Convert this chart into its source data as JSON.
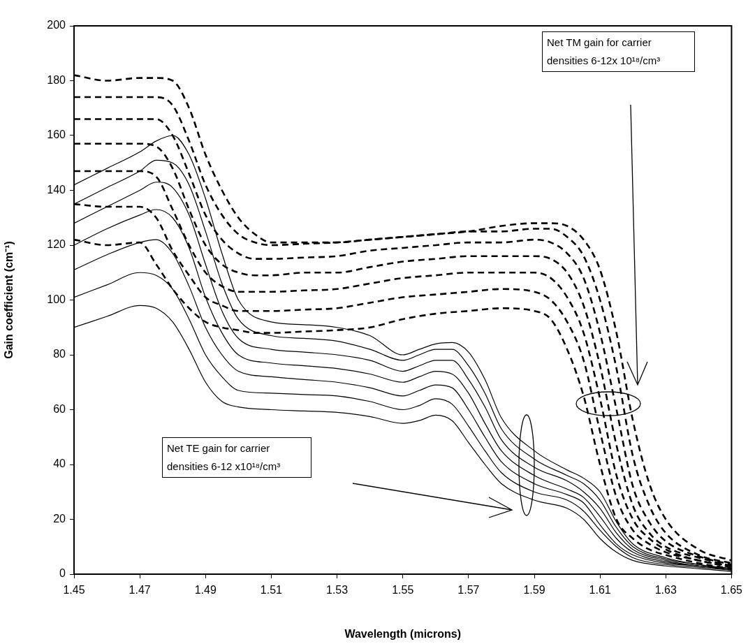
{
  "chart_data": {
    "type": "line",
    "xlabel": "Wavelength (microns)",
    "ylabel": "Gain coefficient (cm⁻¹)",
    "x": [
      1.45,
      1.46,
      1.47,
      1.475,
      1.48,
      1.485,
      1.49,
      1.495,
      1.5,
      1.51,
      1.52,
      1.53,
      1.54,
      1.55,
      1.555,
      1.56,
      1.565,
      1.57,
      1.575,
      1.58,
      1.59,
      1.6,
      1.605,
      1.61,
      1.615,
      1.62,
      1.63,
      1.64,
      1.65
    ],
    "series": [
      {
        "color": "#000000",
        "line_style": "solid",
        "values": [
          90,
          94,
          98,
          97,
          92,
          82,
          70,
          63,
          61,
          60,
          59.5,
          59,
          57.5,
          55,
          56,
          58,
          56,
          48,
          40,
          33,
          27,
          24,
          20,
          13,
          8,
          5,
          3,
          2,
          1
        ]
      },
      {
        "color": "#000000",
        "line_style": "solid",
        "values": [
          101,
          105.5,
          110,
          109,
          104,
          93,
          80,
          72,
          67,
          66,
          65.5,
          65,
          63,
          60,
          61.5,
          64,
          62,
          54,
          45,
          37,
          30,
          27,
          23,
          16,
          10,
          6,
          3.5,
          2.5,
          1.5
        ]
      },
      {
        "color": "#000000",
        "line_style": "solid",
        "values": [
          111,
          116.5,
          121,
          122,
          117,
          105,
          90,
          80,
          74,
          72,
          71,
          70,
          68,
          65,
          67,
          69,
          68,
          60,
          50,
          41,
          33,
          29,
          26,
          18,
          11,
          7,
          4,
          3,
          1.5
        ]
      },
      {
        "color": "#000000",
        "line_style": "solid",
        "values": [
          120,
          126,
          131,
          133,
          130,
          119,
          101,
          88,
          80,
          77,
          76,
          75,
          73,
          70,
          72,
          74,
          73,
          66,
          55,
          45,
          36,
          31,
          28,
          21,
          13,
          8,
          4.5,
          3,
          2
        ]
      },
      {
        "color": "#000000",
        "line_style": "solid",
        "values": [
          128,
          134,
          140,
          143,
          141,
          131,
          113,
          96,
          86,
          82,
          81,
          80,
          78,
          74,
          76,
          78,
          78,
          71,
          61,
          49,
          39,
          34,
          30,
          24,
          15,
          9,
          5,
          3,
          2
        ]
      },
      {
        "color": "#000000",
        "line_style": "solid",
        "values": [
          135,
          141,
          147,
          151,
          150,
          142,
          125,
          106,
          93,
          87,
          86,
          85,
          82,
          78,
          80,
          82,
          82,
          76,
          66,
          53,
          42,
          36,
          33,
          27,
          17,
          10,
          5.5,
          3.5,
          2
        ]
      },
      {
        "color": "#000000",
        "line_style": "solid",
        "values": [
          142,
          148,
          154,
          158,
          160,
          153,
          137,
          117,
          100,
          92,
          91,
          90,
          87,
          80,
          82,
          84,
          84.5,
          81,
          71,
          57,
          45,
          38,
          35,
          30,
          19,
          11,
          6,
          3.5,
          2
        ]
      },
      {
        "color": "#000000",
        "line_style": "dashed",
        "x": [
          1.45,
          1.46,
          1.47,
          1.475,
          1.48,
          1.485,
          1.49,
          1.495,
          1.5,
          1.505,
          1.51,
          1.52,
          1.53,
          1.54,
          1.55,
          1.56,
          1.57,
          1.58,
          1.59,
          1.595,
          1.6,
          1.605,
          1.61,
          1.615,
          1.62,
          1.625,
          1.63,
          1.64,
          1.65
        ],
        "values": [
          122,
          120,
          121,
          113,
          104,
          97,
          92,
          90,
          89,
          88,
          88,
          88.5,
          89,
          90,
          93,
          95,
          96,
          97,
          96,
          93,
          82,
          65,
          40,
          20,
          13,
          9,
          7,
          4,
          2
        ]
      },
      {
        "color": "#000000",
        "line_style": "dashed",
        "x": [
          1.45,
          1.46,
          1.47,
          1.475,
          1.48,
          1.485,
          1.49,
          1.495,
          1.5,
          1.505,
          1.51,
          1.52,
          1.53,
          1.54,
          1.55,
          1.56,
          1.57,
          1.58,
          1.59,
          1.595,
          1.6,
          1.605,
          1.61,
          1.615,
          1.62,
          1.625,
          1.63,
          1.64,
          1.65
        ],
        "values": [
          135,
          134,
          134,
          130,
          118,
          109,
          101,
          98,
          96,
          96,
          96,
          96.5,
          97,
          99,
          101,
          102,
          103,
          104,
          103,
          100,
          92,
          78,
          52,
          28,
          16,
          11,
          8,
          5,
          2.5
        ]
      },
      {
        "color": "#000000",
        "line_style": "dashed",
        "x": [
          1.45,
          1.46,
          1.47,
          1.475,
          1.48,
          1.485,
          1.49,
          1.495,
          1.5,
          1.505,
          1.51,
          1.52,
          1.53,
          1.54,
          1.55,
          1.56,
          1.57,
          1.58,
          1.59,
          1.595,
          1.6,
          1.605,
          1.61,
          1.615,
          1.62,
          1.625,
          1.63,
          1.64,
          1.65
        ],
        "values": [
          147,
          147,
          147,
          145,
          133,
          120,
          110,
          105,
          103,
          103,
          103,
          103.5,
          104,
          106,
          108,
          109,
          110,
          110,
          110,
          108,
          101,
          88,
          64,
          36,
          20,
          13,
          9,
          5,
          3
        ]
      },
      {
        "color": "#000000",
        "line_style": "dashed",
        "x": [
          1.45,
          1.46,
          1.47,
          1.475,
          1.48,
          1.485,
          1.49,
          1.495,
          1.5,
          1.505,
          1.51,
          1.52,
          1.53,
          1.54,
          1.55,
          1.56,
          1.57,
          1.58,
          1.59,
          1.595,
          1.6,
          1.605,
          1.61,
          1.615,
          1.62,
          1.625,
          1.63,
          1.64,
          1.65
        ],
        "values": [
          157,
          157,
          157,
          156,
          148,
          133,
          120,
          113,
          110,
          109,
          109,
          110,
          110,
          112,
          114,
          115,
          116,
          116,
          116,
          115,
          110,
          98,
          76,
          47,
          25,
          15,
          10,
          6,
          3
        ]
      },
      {
        "color": "#000000",
        "line_style": "dashed",
        "x": [
          1.45,
          1.46,
          1.47,
          1.475,
          1.48,
          1.485,
          1.49,
          1.495,
          1.5,
          1.505,
          1.51,
          1.52,
          1.53,
          1.54,
          1.55,
          1.56,
          1.57,
          1.58,
          1.59,
          1.595,
          1.6,
          1.605,
          1.61,
          1.615,
          1.62,
          1.625,
          1.63,
          1.64,
          1.65
        ],
        "values": [
          166,
          166,
          166,
          166,
          160,
          146,
          131,
          122,
          117,
          115,
          115,
          115.5,
          116,
          118,
          119,
          120,
          121,
          121,
          122,
          121,
          117,
          108,
          88,
          60,
          32,
          19,
          12,
          6.5,
          3.5
        ]
      },
      {
        "color": "#000000",
        "line_style": "dashed",
        "x": [
          1.45,
          1.46,
          1.47,
          1.475,
          1.48,
          1.485,
          1.49,
          1.495,
          1.5,
          1.505,
          1.51,
          1.52,
          1.53,
          1.54,
          1.55,
          1.56,
          1.57,
          1.58,
          1.59,
          1.595,
          1.6,
          1.605,
          1.61,
          1.615,
          1.62,
          1.625,
          1.63,
          1.64,
          1.65
        ],
        "values": [
          174,
          174,
          174,
          174,
          171,
          158,
          142,
          131,
          124,
          121,
          120,
          120.5,
          121,
          122,
          123,
          124,
          125,
          125,
          126,
          126,
          123,
          116,
          100,
          75,
          43,
          25,
          15,
          7,
          4
        ]
      },
      {
        "color": "#000000",
        "line_style": "dashed",
        "x": [
          1.45,
          1.46,
          1.47,
          1.475,
          1.48,
          1.485,
          1.49,
          1.495,
          1.5,
          1.505,
          1.51,
          1.52,
          1.53,
          1.54,
          1.55,
          1.56,
          1.57,
          1.58,
          1.59,
          1.595,
          1.6,
          1.605,
          1.61,
          1.615,
          1.62,
          1.625,
          1.63,
          1.64,
          1.65
        ],
        "values": [
          182,
          180,
          181,
          181,
          180,
          170,
          153,
          140,
          130,
          124,
          121,
          121,
          121,
          122,
          123,
          124,
          125,
          127,
          128,
          128,
          127,
          122,
          111,
          88,
          56,
          33,
          20,
          9,
          5
        ]
      }
    ],
    "xlim": [
      1.45,
      1.65
    ],
    "xticks": [
      1.45,
      1.47,
      1.49,
      1.51,
      1.53,
      1.55,
      1.57,
      1.59,
      1.61,
      1.63,
      1.65
    ],
    "ylim": [
      0,
      200
    ],
    "yticks": [
      0,
      20,
      40,
      60,
      80,
      100,
      120,
      140,
      160,
      180,
      200
    ],
    "grid": false,
    "legend": false,
    "annotations": [
      "Net TM gain for carrier densities 6-12x 10¹⁸/cm³",
      "Net TE gain for carrier densities 6-12 x10¹⁸/cm³"
    ]
  }
}
